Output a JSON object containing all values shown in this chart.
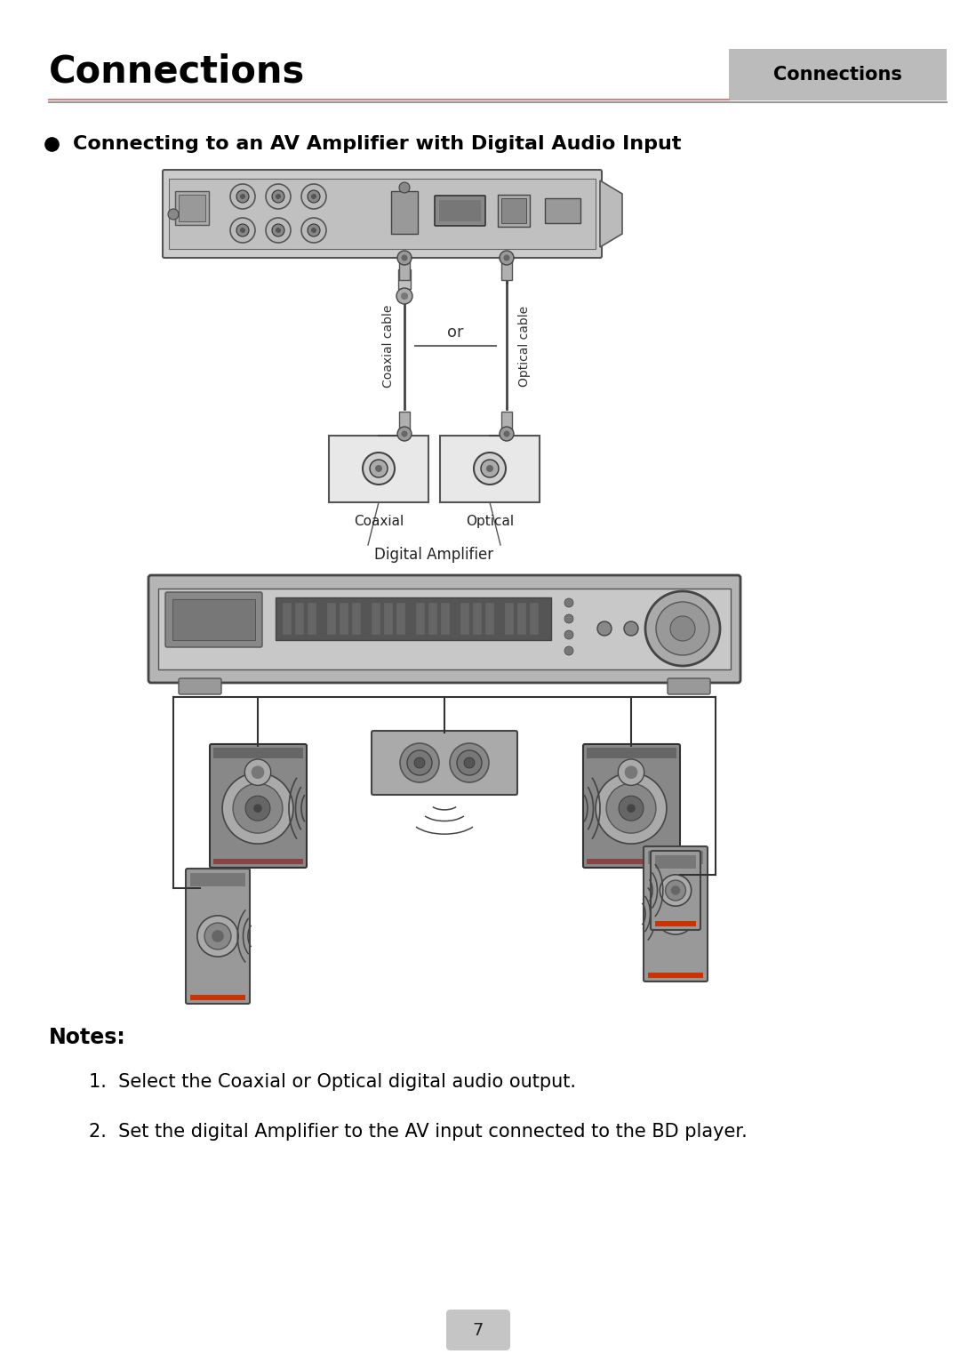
{
  "title": "Connections",
  "tab_label": "Connections",
  "section_heading": "Connecting to an AV Amplifier with Digital Audio Input",
  "notes_heading": "Notes:",
  "note1": "1.  Select the Coaxial or Optical digital audio output.",
  "note2": "2.  Set the digital Amplifier to the AV input connected to the BD player.",
  "page_number": "7",
  "bg_color": "#ffffff",
  "title_color": "#000000",
  "tab_bg": "#bbbbbb",
  "tab_text_color": "#000000",
  "gray_light": "#d8d8d8",
  "gray_mid": "#aaaaaa",
  "gray_dark": "#777777",
  "gray_darker": "#555555",
  "red_accent": "#cc2200",
  "line_color": "#888888",
  "or_text": "or",
  "coaxial_label": "Coaxial",
  "optical_label": "Optical",
  "coaxial_cable_label": "Coaxial cable",
  "optical_cable_label": "Optical cable",
  "digital_amp_label": "Digital Amplifier"
}
